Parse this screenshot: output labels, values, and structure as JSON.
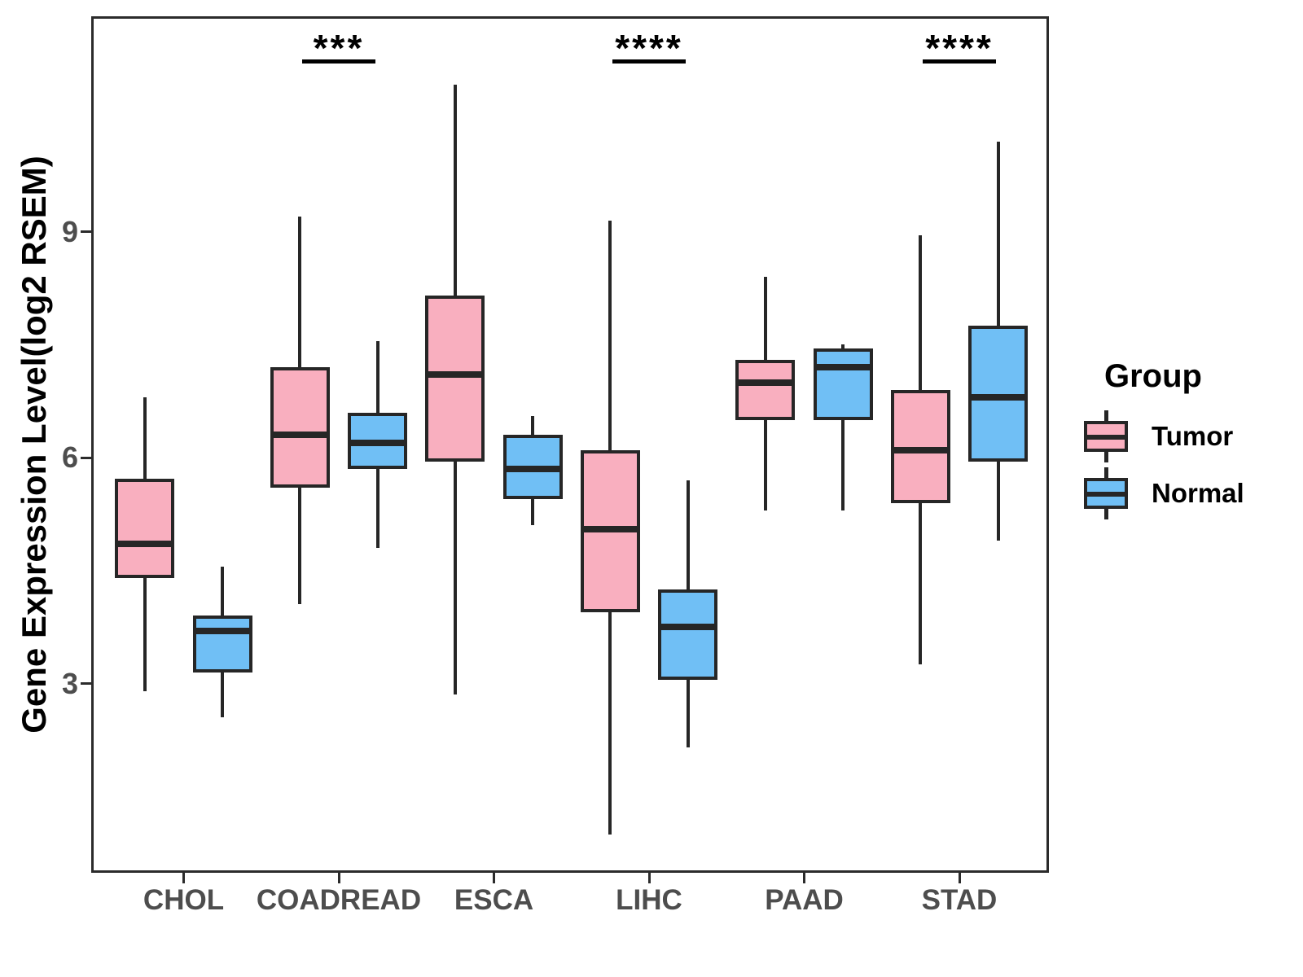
{
  "figure": {
    "y_axis_title": "Gene Expression Level(log2 RSEM)",
    "y_tick_labels": [
      "9",
      "6",
      "3"
    ],
    "x_tick_labels": [
      "CHOL",
      "COADREAD",
      "ESCA",
      "LIHC",
      "PAAD",
      "STAD"
    ]
  },
  "legend": {
    "title": "Group",
    "items": [
      {
        "label": "Tumor",
        "color": "#F9AFBF"
      },
      {
        "label": "Normal",
        "color": "#70BFF5"
      }
    ]
  },
  "chart_data": {
    "type": "boxplot",
    "title": "",
    "xlabel": "",
    "ylabel": "Gene Expression Level(log2 RSEM)",
    "categories": [
      "CHOL",
      "COADREAD",
      "ESCA",
      "LIHC",
      "PAAD",
      "STAD"
    ],
    "yticks": [
      3,
      6,
      9
    ],
    "ylim": [
      0.5,
      11.9
    ],
    "grid": false,
    "legend_position": "right",
    "legend_title": "Group",
    "series": [
      {
        "name": "Tumor",
        "color": "#F9AFBF",
        "boxes": [
          {
            "category": "CHOL",
            "whisker_low": 2.9,
            "q1": 4.4,
            "median": 4.85,
            "q3": 5.72,
            "whisker_high": 6.8
          },
          {
            "category": "COADREAD",
            "whisker_low": 4.05,
            "q1": 5.6,
            "median": 6.3,
            "q3": 7.2,
            "whisker_high": 9.2
          },
          {
            "category": "ESCA",
            "whisker_low": 2.85,
            "q1": 5.95,
            "median": 7.1,
            "q3": 8.15,
            "whisker_high": 10.95
          },
          {
            "category": "LIHC",
            "whisker_low": 1.0,
            "q1": 3.95,
            "median": 5.05,
            "q3": 6.1,
            "whisker_high": 9.15
          },
          {
            "category": "PAAD",
            "whisker_low": 5.3,
            "q1": 6.5,
            "median": 7.0,
            "q3": 7.3,
            "whisker_high": 8.4
          },
          {
            "category": "STAD",
            "whisker_low": 3.25,
            "q1": 5.4,
            "median": 6.1,
            "q3": 6.9,
            "whisker_high": 8.95
          }
        ]
      },
      {
        "name": "Normal",
        "color": "#70BFF5",
        "boxes": [
          {
            "category": "CHOL",
            "whisker_low": 2.55,
            "q1": 3.15,
            "median": 3.7,
            "q3": 3.9,
            "whisker_high": 4.55
          },
          {
            "category": "COADREAD",
            "whisker_low": 4.8,
            "q1": 5.85,
            "median": 6.2,
            "q3": 6.6,
            "whisker_high": 7.55
          },
          {
            "category": "ESCA",
            "whisker_low": 5.1,
            "q1": 5.45,
            "median": 5.85,
            "q3": 6.3,
            "whisker_high": 6.55
          },
          {
            "category": "LIHC",
            "whisker_low": 2.15,
            "q1": 3.05,
            "median": 3.75,
            "q3": 4.25,
            "whisker_high": 5.7
          },
          {
            "category": "PAAD",
            "whisker_low": 5.3,
            "q1": 6.5,
            "median": 7.2,
            "q3": 7.45,
            "whisker_high": 7.5
          },
          {
            "category": "STAD",
            "whisker_low": 4.9,
            "q1": 5.95,
            "median": 6.8,
            "q3": 7.75,
            "whisker_high": 10.2
          }
        ]
      }
    ],
    "significance": [
      {
        "category": "COADREAD",
        "label": "***"
      },
      {
        "category": "LIHC",
        "label": "****"
      },
      {
        "category": "STAD",
        "label": "****"
      }
    ],
    "colors": {
      "box_outline": "#262626",
      "axis_text": "#4d4d4d",
      "title_text": "#000000",
      "panel_border": "#2b2b2b"
    }
  }
}
